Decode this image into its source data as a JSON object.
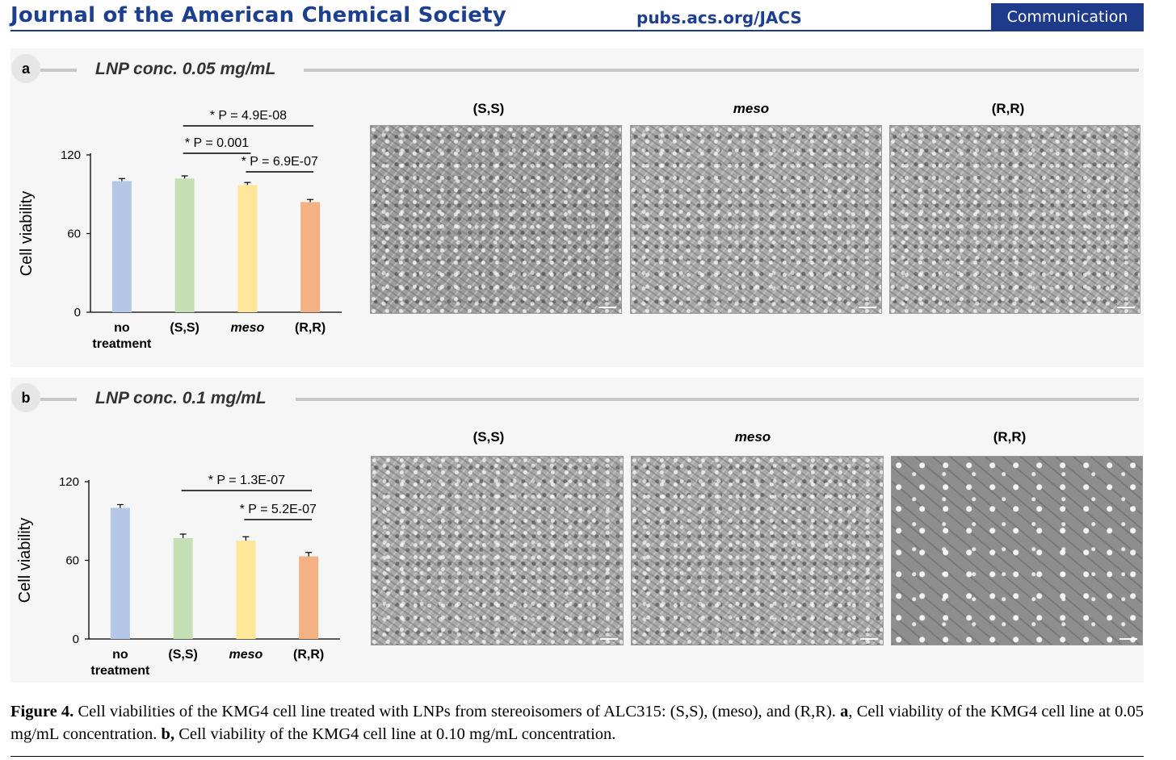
{
  "header": {
    "journal": "Journal of the American Chemical Society",
    "url": "pubs.acs.org/JACS",
    "section": "Communication"
  },
  "panels": [
    {
      "label": "a",
      "conc": "LNP conc. 0.05 mg/mL",
      "image_titles": [
        "(S,S)",
        "meso",
        "(R,R)"
      ]
    },
    {
      "label": "b",
      "conc": "LNP conc. 0.1 mg/mL",
      "image_titles": [
        "(S,S)",
        "meso",
        "(R,R)"
      ]
    }
  ],
  "chart_data": [
    {
      "type": "bar",
      "panel": "a",
      "categories": [
        "no treatment",
        "(S,S)",
        "meso",
        "(R,R)"
      ],
      "values": [
        100,
        102,
        97,
        84
      ],
      "errors": [
        2,
        2,
        2,
        2
      ],
      "colors": [
        "#b4c7e7",
        "#c5e0b4",
        "#ffe699",
        "#f4b183"
      ],
      "ylabel": "Cell viability",
      "yticks": [
        0,
        60,
        120
      ],
      "ylim": [
        0,
        120
      ],
      "significance": [
        {
          "from": 1,
          "to": 3,
          "label": "* P = 4.9E-08"
        },
        {
          "from": 1,
          "to": 2,
          "label": "* P = 0.001"
        },
        {
          "from": 2,
          "to": 3,
          "label": "* P = 6.9E-07"
        }
      ]
    },
    {
      "type": "bar",
      "panel": "b",
      "categories": [
        "no treatment",
        "(S,S)",
        "meso",
        "(R,R)"
      ],
      "values": [
        100,
        77,
        75,
        63
      ],
      "errors": [
        2.5,
        3,
        3,
        3
      ],
      "colors": [
        "#b4c7e7",
        "#c5e0b4",
        "#ffe699",
        "#f4b183"
      ],
      "ylabel": "Cell viability",
      "yticks": [
        0,
        60,
        120
      ],
      "ylim": [
        0,
        120
      ],
      "significance": [
        {
          "from": 1,
          "to": 3,
          "label": "* P = 1.3E-07"
        },
        {
          "from": 2,
          "to": 3,
          "label": "* P = 5.2E-07"
        }
      ]
    }
  ],
  "caption": {
    "figure_label": "Figure 4.",
    "text_1": " Cell viabilities of the KMG4 cell line treated with LNPs from stereoisomers of ALC315: (S,S), (meso), and (R,R). ",
    "a_label": "a",
    "text_2": ", Cell viability of the KMG4 cell line at 0.05 mg/mL concentration. ",
    "b_label": "b,",
    "text_3": " Cell viability of the KMG4 cell line at 0.10 mg/mL concentration."
  }
}
